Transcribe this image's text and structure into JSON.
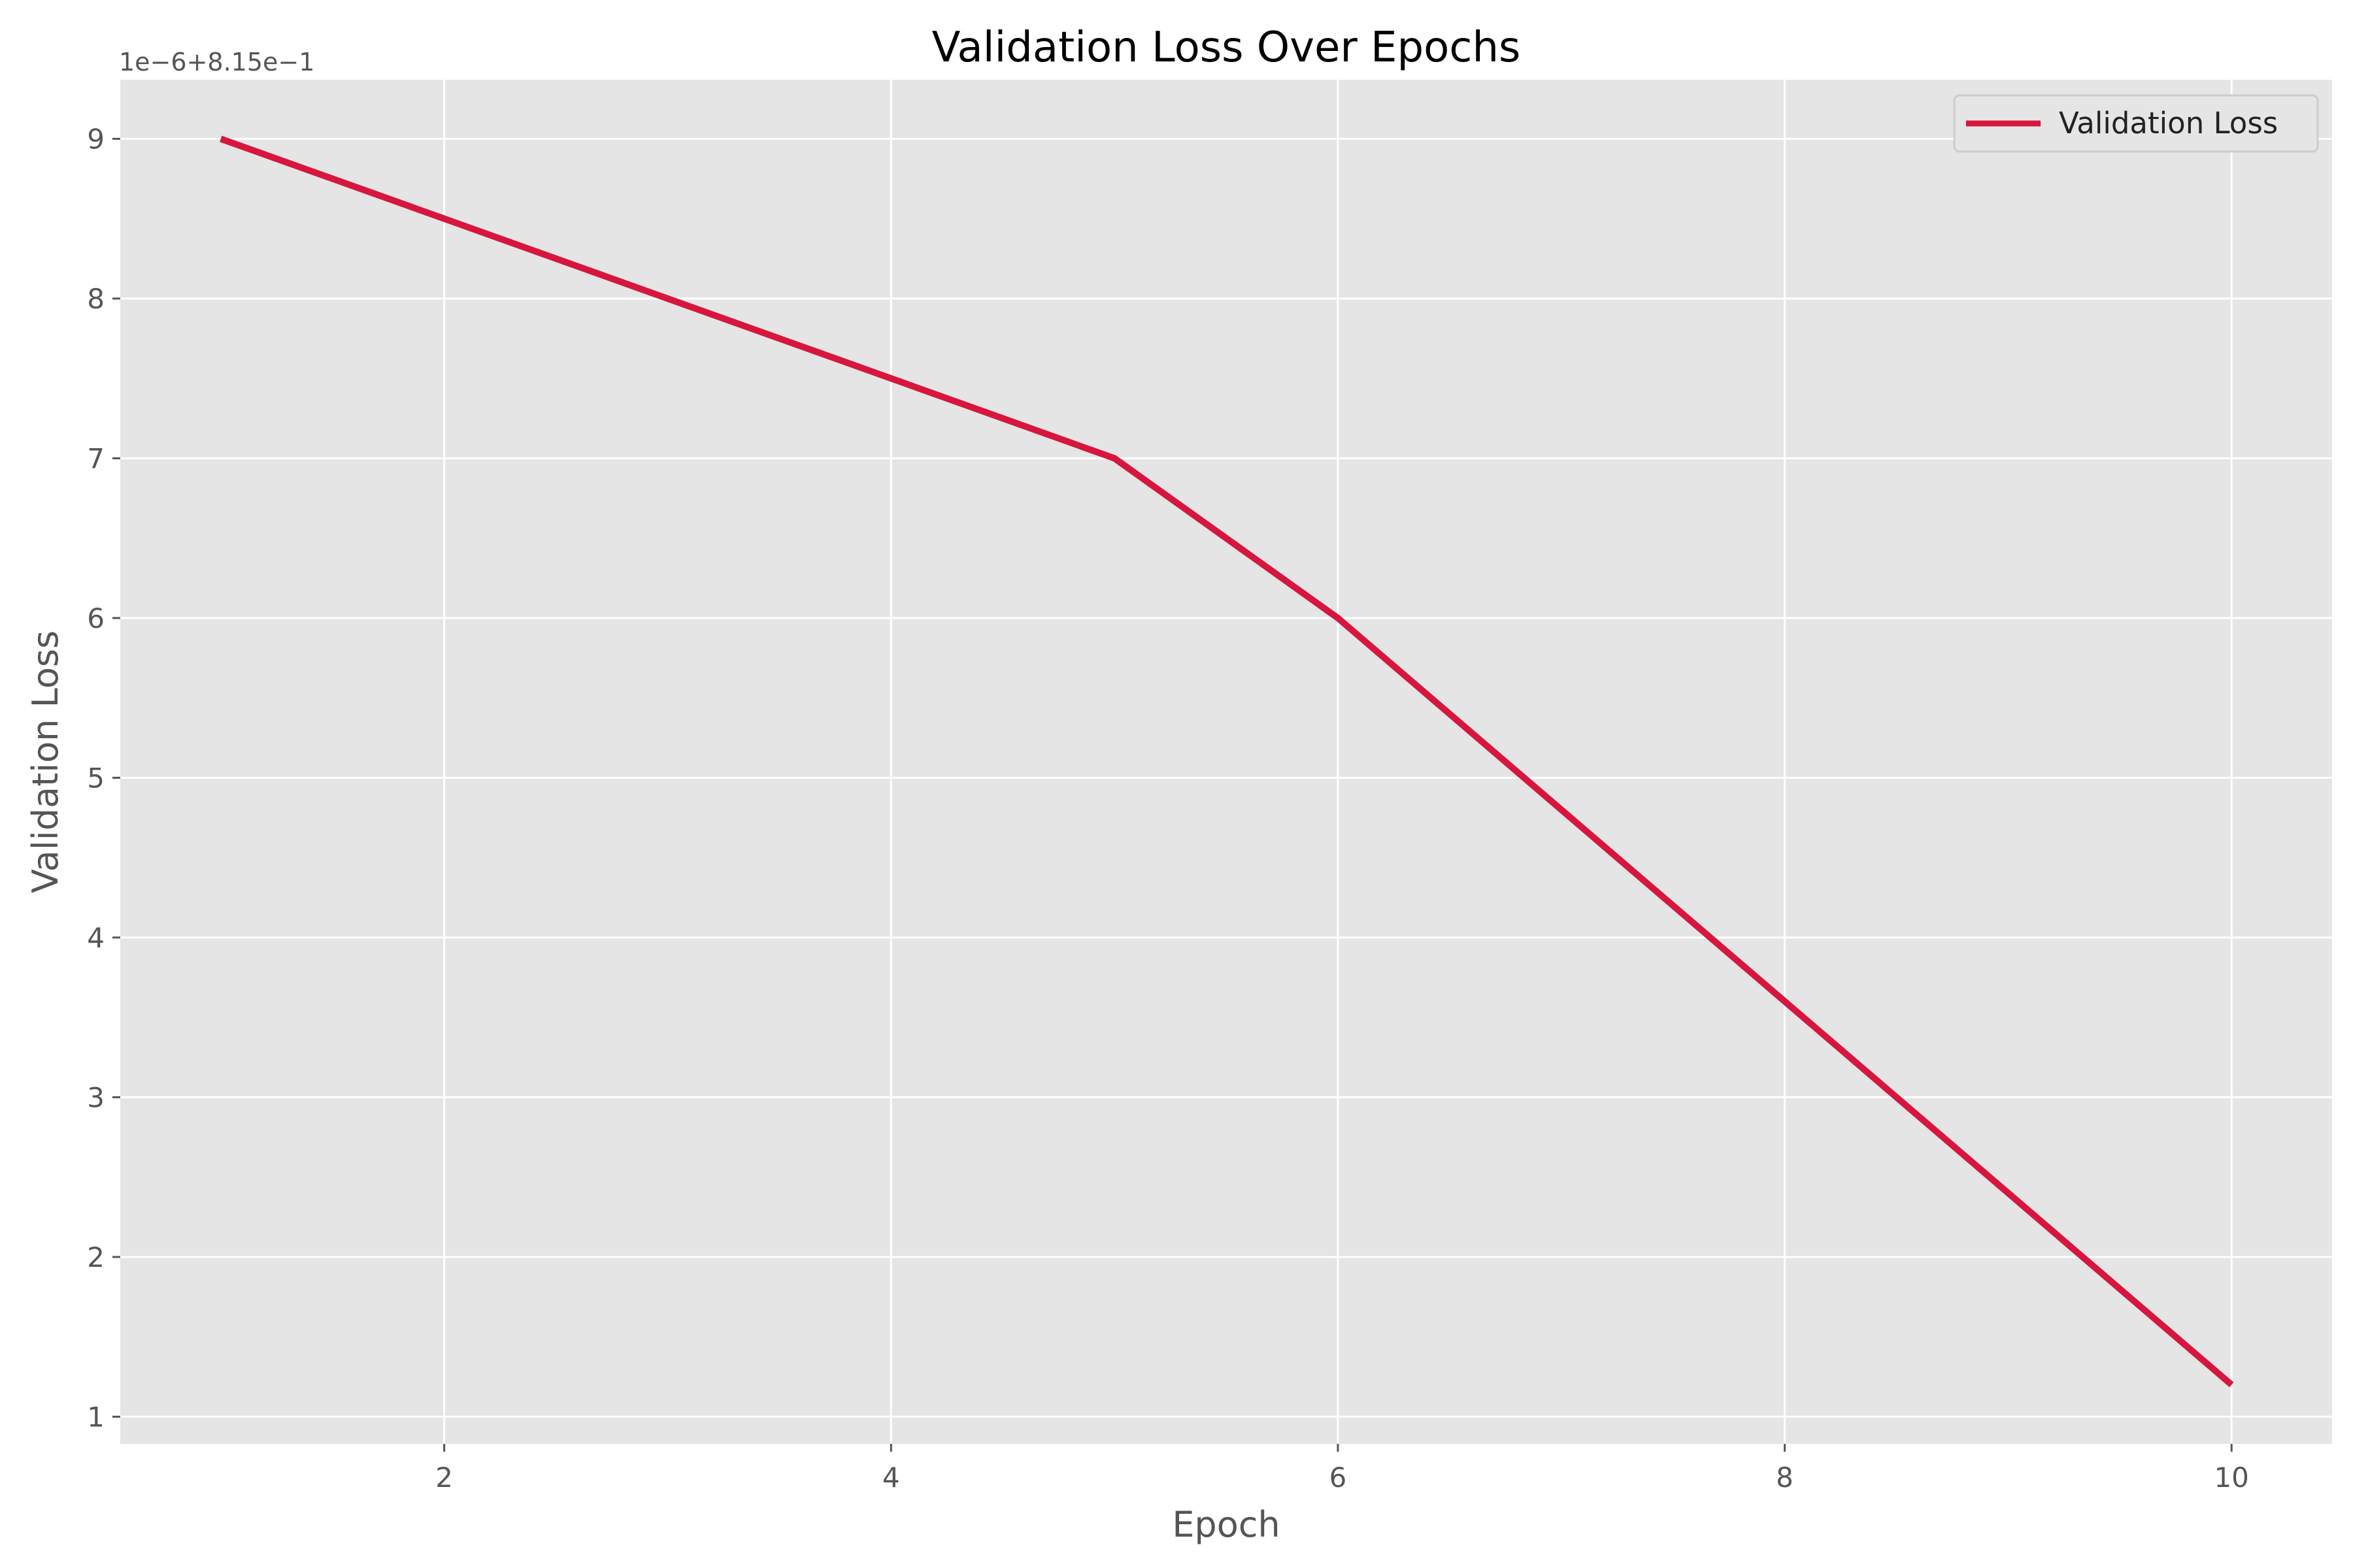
{
  "chart_data": {
    "type": "line",
    "title": "Validation Loss Over Epochs",
    "xlabel": "Epoch",
    "ylabel": "Validation Loss",
    "y_offset_label": "1e−6+8.15e−1",
    "x": [
      1,
      2,
      3,
      4,
      5,
      6,
      7,
      8,
      9,
      10
    ],
    "series": [
      {
        "name": "Validation Loss",
        "color": "#d7163e",
        "values": [
          0.815009,
          0.8150085,
          0.815008,
          0.8150075,
          0.815007,
          0.815006,
          0.8150048,
          0.8150036,
          0.8150024,
          0.8150012
        ]
      }
    ],
    "xlim": [
      0.55,
      10.45
    ],
    "ylim": [
      0.81500083,
      0.81500937
    ],
    "x_ticks": [
      2,
      4,
      6,
      8,
      10
    ],
    "x_tick_labels": [
      "2",
      "4",
      "6",
      "8",
      "10"
    ],
    "y_ticks": [
      1,
      2,
      3,
      4,
      5,
      6,
      7,
      8,
      9
    ],
    "y_tick_labels": [
      "1",
      "2",
      "3",
      "4",
      "5",
      "6",
      "7",
      "8",
      "9"
    ],
    "y_offset": 0.815,
    "y_scale": 1e-06,
    "grid": true,
    "legend_position": "top-right",
    "plot_background": "#e5e5e5",
    "grid_color": "#ffffff"
  }
}
